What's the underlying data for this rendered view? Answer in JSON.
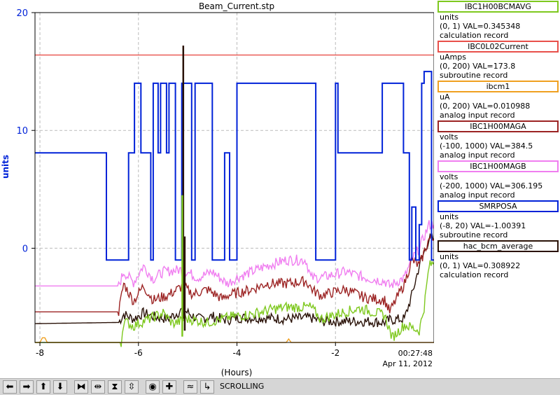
{
  "chart_data": {
    "type": "line",
    "title": "Beam_Current.stp",
    "ylabel": "units",
    "xlabel": "(Hours)",
    "timestamp_time": "00:27:48",
    "timestamp_date": "Apr 11, 2012",
    "xlim": [
      -8.1,
      0
    ],
    "ylim": [
      -8,
      20
    ],
    "y_ticks": [
      0,
      10,
      20
    ],
    "y_tick_labels": [
      "0",
      "10",
      "20"
    ],
    "x_ticks": [
      -8,
      -6,
      -4,
      -2
    ],
    "x_tick_labels": [
      "-8",
      "-6",
      "-4",
      "-2"
    ],
    "grid": true,
    "legend_position": "right",
    "series": [
      {
        "name": "IBC1H00BCMAVG",
        "color": "#7ec81e",
        "units": "units",
        "range": "(0, 1) VAL=0.345348",
        "type_text": "calculation record",
        "noisy": true,
        "x": [
          -8.1,
          -6.35,
          -6.3,
          -6.1,
          -5.9,
          -5.5,
          -5.3,
          -5.0,
          -4.6,
          -4.4,
          -4.1,
          -3.7,
          -3.3,
          -3.0,
          -2.6,
          -2.5,
          -2.3,
          -1.9,
          -1.5,
          -1.0,
          -0.85,
          -0.6,
          -0.3,
          -0.2,
          -0.1,
          0.0
        ],
        "y": [
          -8,
          -8,
          -6.2,
          -6.6,
          -6.2,
          -5.5,
          -6.4,
          -6.0,
          -6.3,
          -6.1,
          -5.8,
          -5.6,
          -5.2,
          -5.0,
          -5.0,
          -5.0,
          -6.0,
          -5.5,
          -5.1,
          -5.7,
          -7.6,
          -6.5,
          -7.0,
          -5.0,
          -1.5,
          -1.2
        ]
      },
      {
        "name": "IBC0L02Current",
        "color": "#e8504a",
        "units": "uAmps",
        "range": "(0, 200) VAL=173.8",
        "type_text": "subroutine record",
        "noisy": false,
        "x": [
          -8.1,
          0.0
        ],
        "y": [
          16.4,
          16.4
        ]
      },
      {
        "name": "ibcm1",
        "color": "#f0a020",
        "units": "uA",
        "range": "(0, 200) VAL=0.010988",
        "type_text": "analog input record",
        "noisy": false,
        "x": [
          -8.1,
          -8.0,
          -7.95,
          -7.9,
          -7.85,
          -7.0,
          -3.0,
          -2.95,
          -2.9,
          0.0
        ],
        "y": [
          -8,
          -8,
          -7.6,
          -7.6,
          -8,
          -8,
          -8,
          -7.7,
          -8,
          -8
        ]
      },
      {
        "name": "IBC1H00MAGA",
        "color": "#9c2424",
        "units": "volts",
        "range": "(-100, 1000) VAL=384.5",
        "type_text": "analog input record",
        "noisy": true,
        "x": [
          -8.1,
          -6.4,
          -6.3,
          -6.1,
          -5.9,
          -5.7,
          -5.4,
          -5.1,
          -4.9,
          -4.6,
          -4.3,
          -4.2,
          -4.0,
          -3.7,
          -3.4,
          -3.0,
          -2.6,
          -2.45,
          -2.3,
          -1.8,
          -1.4,
          -1.0,
          -0.9,
          -0.6,
          -0.45,
          -0.3,
          -0.1,
          0.0
        ],
        "y": [
          -5.4,
          -5.4,
          -3.0,
          -4.5,
          -3.2,
          -4.4,
          -4.0,
          -3.2,
          -3.9,
          -3.5,
          -4.3,
          -4.0,
          -3.8,
          -3.5,
          -3.0,
          -3.0,
          -2.8,
          -3.6,
          -4.0,
          -3.5,
          -4.2,
          -4.4,
          -5.4,
          -3.0,
          -1.0,
          -1.5,
          0.8,
          0.8
        ]
      },
      {
        "name": "IBC1H00MAGB",
        "color": "#f07ef0",
        "units": "volts",
        "range": "(-200, 1000) VAL=306.195",
        "type_text": "analog input record",
        "noisy": true,
        "x": [
          -8.1,
          -6.4,
          -6.3,
          -6.1,
          -5.9,
          -5.7,
          -5.5,
          -5.1,
          -4.8,
          -4.5,
          -4.2,
          -4.0,
          -3.7,
          -3.4,
          -3.0,
          -2.6,
          -2.5,
          -2.3,
          -1.8,
          -1.4,
          -1.0,
          -0.9,
          -0.6,
          -0.45,
          -0.3,
          -0.1,
          0.0
        ],
        "y": [
          -3.2,
          -3.2,
          -2.0,
          -2.9,
          -1.5,
          -2.6,
          -2.0,
          -1.8,
          -2.5,
          -2.0,
          -3.0,
          -2.5,
          -2.0,
          -1.5,
          -1.0,
          -1.0,
          -2.5,
          -2.5,
          -2.0,
          -2.5,
          -2.8,
          -3.2,
          -2.5,
          -1.0,
          0.0,
          2.0,
          2.0
        ]
      },
      {
        "name": "SMRPOSA",
        "color": "#0022d8",
        "units": "units",
        "range": "(-8, 20) VAL=-1.00391",
        "type_text": "subroutine record",
        "noisy": false,
        "step": true,
        "x": [
          -8.1,
          -6.65,
          -6.2,
          -6.13,
          -6.08,
          -6.0,
          -5.95,
          -5.82,
          -5.75,
          -5.7,
          -5.65,
          -5.6,
          -5.55,
          -5.48,
          -5.43,
          -5.38,
          -5.33,
          -5.25,
          -5.12,
          -5.08,
          -4.92,
          -4.85,
          -4.8,
          -4.5,
          -4.25,
          -4.2,
          -4.15,
          -4.1,
          -4.0,
          -3.95,
          -2.4,
          -2.0,
          -1.95,
          -1.8,
          -1.05,
          -0.95,
          -0.62,
          -0.58,
          -0.5,
          -0.45,
          -0.37,
          -0.3,
          -0.25,
          -0.23,
          -0.2,
          -0.15,
          -0.05
        ],
        "y": [
          8.1,
          -1,
          8.1,
          8.1,
          14,
          14,
          8.1,
          8.1,
          -1,
          14,
          14,
          8.1,
          14,
          14,
          8.1,
          14,
          14,
          -1,
          14,
          14,
          -1,
          14,
          14,
          -1,
          8.1,
          8.1,
          -1,
          -1,
          14,
          14,
          -1,
          14,
          8.1,
          8.1,
          14,
          14,
          8.1,
          8.1,
          -1,
          3.5,
          -1,
          2.0,
          14,
          14,
          15,
          15,
          -1
        ]
      },
      {
        "name": "hac_bcm_average",
        "color": "#2a1208",
        "units": "units",
        "range": "(0, 1) VAL=0.308922",
        "type_text": "calculation record",
        "noisy": true,
        "x": [
          -8.1,
          -6.4,
          -6.3,
          -6.1,
          -5.9,
          -5.7,
          -5.4,
          -5.1,
          -4.8,
          -4.5,
          -4.2,
          -4.0,
          -3.5,
          -3.0,
          -2.5,
          -2.3,
          -1.8,
          -1.4,
          -1.0,
          -0.9,
          -0.6,
          -0.45,
          -0.3,
          -0.1,
          0.0
        ],
        "y": [
          -6.4,
          -6.3,
          -5.6,
          -6.0,
          -5.5,
          -5.8,
          -6.0,
          -5.2,
          -6.0,
          -5.8,
          -6.1,
          -5.9,
          -5.9,
          -6.0,
          -5.9,
          -6.2,
          -6.2,
          -6.2,
          -6.3,
          -6.1,
          -6.0,
          -4.0,
          -1.5,
          0.8,
          0.8
        ]
      }
    ],
    "spikes": [
      {
        "x": -5.09,
        "y0": -6.0,
        "y1": 17.2,
        "color": "#2a1208"
      },
      {
        "x": -5.06,
        "y0": -7.0,
        "y1": 1.0,
        "color": "#2a1208"
      },
      {
        "x": -5.11,
        "y0": -7.5,
        "y1": 4.5,
        "color": "#7ec81e"
      }
    ]
  },
  "toolbar": {
    "status": "SCROLLING",
    "buttons": [
      "left-arrow",
      "right-arrow",
      "up-arrow",
      "down-arrow",
      "zoom-in-x",
      "zoom-out-x",
      "zoom-in-y",
      "zoom-out-y",
      "stop",
      "add",
      "config",
      "fit"
    ],
    "glyphs": [
      "⬅",
      "➡",
      "⬆",
      "⬇",
      "⧓",
      "⇹",
      "⧗",
      "⇳",
      "◉",
      "✚",
      "≈",
      "↳"
    ]
  }
}
